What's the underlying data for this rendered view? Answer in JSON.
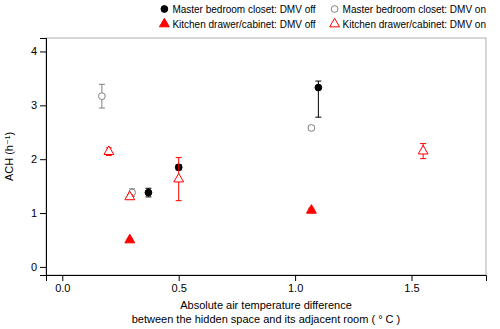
{
  "chart_data": {
    "type": "scatter",
    "xlabel": [
      "Absolute air temperature difference",
      "between the hidden space and its adjacent room ( ° C )"
    ],
    "ylabel": "ACH (h⁻¹)",
    "xlim": [
      -0.07,
      1.82
    ],
    "ylim": [
      -0.15,
      4.25
    ],
    "xticks": [
      {
        "value": 0.0,
        "label": "0.0"
      },
      0.5,
      {
        "value": 1.0,
        "label": "1.0"
      },
      1.5
    ],
    "yticks": [
      0,
      1,
      2,
      3,
      4
    ],
    "grid": false,
    "legend": "upper right",
    "series": [
      {
        "name": "Master bedroom closet: DMV off",
        "color": "black",
        "marker": "circle",
        "x": [
          0.37,
          0.5,
          1.1
        ],
        "values": [
          1.38,
          1.85,
          3.33
        ],
        "error_lo": [
          0.08,
          0.05,
          0.55
        ],
        "error_hi": [
          0.08,
          0.05,
          0.12
        ]
      },
      {
        "name": "Master bedroom closet: DMV on",
        "color": "gray",
        "marker": "circle-open",
        "x": [
          0.17,
          0.3,
          1.07
        ],
        "values": [
          3.17,
          1.38,
          2.58
        ],
        "error": [
          0.22,
          0.07,
          0.04
        ]
      },
      {
        "name": "Kitchen drawer/cabinet: DMV off",
        "color": "red",
        "marker": "triangle",
        "x": [
          0.29,
          1.07
        ],
        "values": [
          0.5,
          1.05
        ],
        "error": [
          0.03,
          0.04
        ]
      },
      {
        "name": "Kitchen drawer/cabinet: DMV on",
        "color": "red",
        "marker": "triangle-open",
        "x": [
          0.2,
          0.29,
          0.5,
          1.55
        ],
        "values": [
          2.14,
          1.3,
          1.63,
          2.15
        ],
        "error": [
          0.07,
          0.04,
          0.4,
          0.14
        ]
      }
    ]
  }
}
